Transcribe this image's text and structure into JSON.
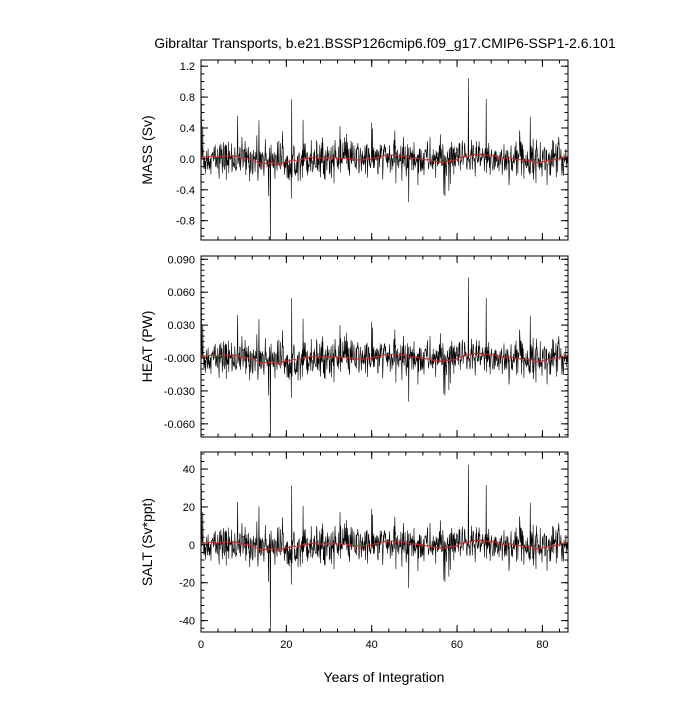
{
  "chart_data": {
    "type": "line",
    "title": "Gibraltar Transports, b.e21.BSSP126cmip6.f09_g17.CMIP6-SSP1-2.6.101",
    "xlabel": "Years of Integration",
    "xlim": [
      0,
      86
    ],
    "x_ticks": [
      "0",
      "20",
      "40",
      "60",
      "80"
    ],
    "x_tick_values": [
      0,
      20,
      40,
      60,
      80
    ],
    "colors": {
      "raw": "#000000",
      "smooth": "#d62728"
    },
    "panels": [
      {
        "id": "mass",
        "ylabel": "MASS (Sv)",
        "ylim": [
          -1.05,
          1.28
        ],
        "y_tick_values": [
          -0.8,
          -0.4,
          0.0,
          0.4,
          0.8,
          1.2
        ],
        "y_tick_labels": [
          "-0.8",
          "-0.4",
          "0.0",
          "0.4",
          "0.8",
          "1.2"
        ],
        "y_minor_step": 0.1,
        "scale": 0.0133,
        "offset": 0.0,
        "series": [
          {
            "values": []
          },
          {
            "values": []
          }
        ]
      },
      {
        "id": "heat",
        "ylabel": "HEAT (PW)",
        "ylim": [
          -0.072,
          0.093
        ],
        "y_tick_values": [
          -0.06,
          -0.03,
          0.0,
          0.03,
          0.06,
          0.09
        ],
        "y_tick_labels": [
          "-0.060",
          "-0.030",
          "-0.000",
          "0.030",
          "0.060",
          "0.090"
        ],
        "y_minor_step": 0.005,
        "scale": 0.00094,
        "offset": 0.0,
        "series": [
          {
            "values": []
          },
          {
            "values": []
          }
        ]
      },
      {
        "id": "salt",
        "ylabel": "SALT (Sv*ppt)",
        "ylim": [
          -46,
          49
        ],
        "y_tick_values": [
          -40,
          -20,
          0,
          20,
          40
        ],
        "y_tick_labels": [
          "-40",
          "-20",
          "0",
          "20",
          "40"
        ],
        "y_minor_step": 4,
        "scale": 0.54,
        "offset": 0.0,
        "series": [
          {
            "values": []
          },
          {
            "values": []
          }
        ]
      }
    ]
  }
}
